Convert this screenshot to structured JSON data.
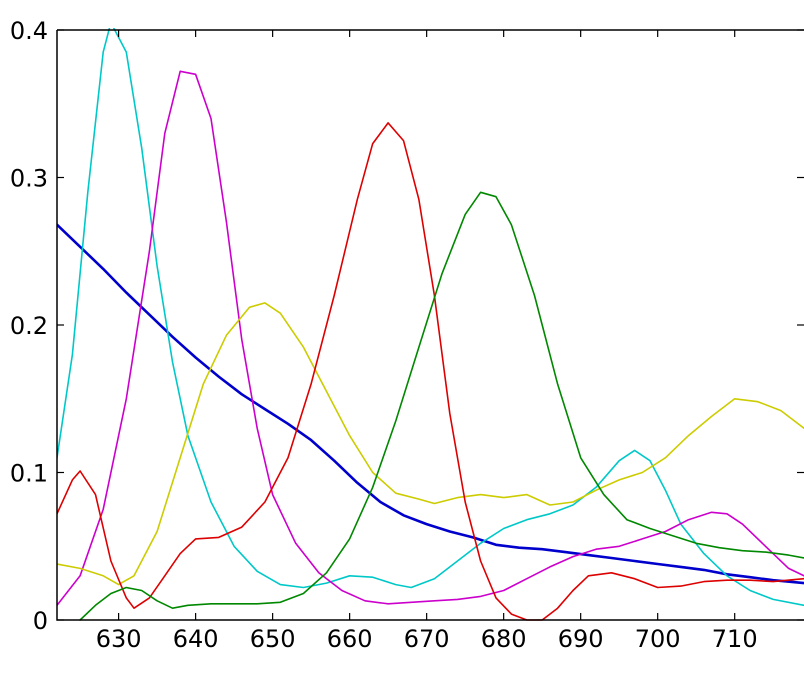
{
  "chart_data": {
    "type": "line",
    "title": "",
    "xlabel": "",
    "ylabel": "",
    "xlim": [
      622,
      719
    ],
    "ylim": [
      0,
      0.4
    ],
    "grid": false,
    "legend": "none",
    "xticks": [
      630,
      640,
      650,
      660,
      670,
      680,
      690,
      700,
      710
    ],
    "xtick_labels": [
      "630",
      "640",
      "650",
      "660",
      "670",
      "680",
      "690",
      "700",
      "710"
    ],
    "yticks": [
      0,
      0.1,
      0.2,
      0.3,
      0.4
    ],
    "ytick_labels": [
      "0",
      "0.1",
      "0.2",
      "0.3",
      "0.4"
    ],
    "series": [
      {
        "color": "#0000cc",
        "points": [
          [
            622,
            0.268
          ],
          [
            625,
            0.253
          ],
          [
            628,
            0.238
          ],
          [
            631,
            0.222
          ],
          [
            634,
            0.207
          ],
          [
            637,
            0.192
          ],
          [
            640,
            0.178
          ],
          [
            643,
            0.165
          ],
          [
            646,
            0.153
          ],
          [
            649,
            0.143
          ],
          [
            652,
            0.133
          ],
          [
            655,
            0.122
          ],
          [
            658,
            0.108
          ],
          [
            661,
            0.093
          ],
          [
            664,
            0.08
          ],
          [
            667,
            0.071
          ],
          [
            670,
            0.065
          ],
          [
            673,
            0.06
          ],
          [
            676,
            0.056
          ],
          [
            679,
            0.051
          ],
          [
            682,
            0.049
          ],
          [
            685,
            0.048
          ],
          [
            688,
            0.046
          ],
          [
            691,
            0.044
          ],
          [
            694,
            0.042
          ],
          [
            697,
            0.04
          ],
          [
            700,
            0.038
          ],
          [
            703,
            0.036
          ],
          [
            706,
            0.034
          ],
          [
            709,
            0.031
          ],
          [
            712,
            0.029
          ],
          [
            715,
            0.027
          ],
          [
            719,
            0.025
          ]
        ]
      },
      {
        "color": "#00c8c8",
        "points": [
          [
            622,
            0.11
          ],
          [
            624,
            0.18
          ],
          [
            626,
            0.29
          ],
          [
            628,
            0.385
          ],
          [
            629,
            0.405
          ],
          [
            631,
            0.385
          ],
          [
            633,
            0.32
          ],
          [
            635,
            0.24
          ],
          [
            637,
            0.175
          ],
          [
            639,
            0.125
          ],
          [
            642,
            0.08
          ],
          [
            645,
            0.05
          ],
          [
            648,
            0.033
          ],
          [
            651,
            0.024
          ],
          [
            654,
            0.022
          ],
          [
            657,
            0.025
          ],
          [
            660,
            0.03
          ],
          [
            663,
            0.029
          ],
          [
            666,
            0.024
          ],
          [
            668,
            0.022
          ],
          [
            671,
            0.028
          ],
          [
            674,
            0.04
          ],
          [
            677,
            0.052
          ],
          [
            680,
            0.062
          ],
          [
            683,
            0.068
          ],
          [
            686,
            0.072
          ],
          [
            689,
            0.078
          ],
          [
            692,
            0.09
          ],
          [
            695,
            0.108
          ],
          [
            697,
            0.115
          ],
          [
            699,
            0.108
          ],
          [
            701,
            0.088
          ],
          [
            703,
            0.065
          ],
          [
            706,
            0.045
          ],
          [
            709,
            0.03
          ],
          [
            712,
            0.02
          ],
          [
            715,
            0.014
          ],
          [
            719,
            0.01
          ]
        ]
      },
      {
        "color": "#cc00cc",
        "points": [
          [
            622,
            0.01
          ],
          [
            625,
            0.03
          ],
          [
            628,
            0.075
          ],
          [
            631,
            0.15
          ],
          [
            634,
            0.25
          ],
          [
            636,
            0.33
          ],
          [
            638,
            0.372
          ],
          [
            640,
            0.37
          ],
          [
            642,
            0.34
          ],
          [
            644,
            0.27
          ],
          [
            646,
            0.19
          ],
          [
            648,
            0.13
          ],
          [
            650,
            0.085
          ],
          [
            653,
            0.052
          ],
          [
            656,
            0.032
          ],
          [
            659,
            0.02
          ],
          [
            662,
            0.013
          ],
          [
            665,
            0.011
          ],
          [
            668,
            0.012
          ],
          [
            671,
            0.013
          ],
          [
            674,
            0.014
          ],
          [
            677,
            0.016
          ],
          [
            680,
            0.02
          ],
          [
            683,
            0.028
          ],
          [
            686,
            0.036
          ],
          [
            689,
            0.043
          ],
          [
            692,
            0.048
          ],
          [
            695,
            0.05
          ],
          [
            698,
            0.055
          ],
          [
            701,
            0.06
          ],
          [
            704,
            0.068
          ],
          [
            707,
            0.073
          ],
          [
            709,
            0.072
          ],
          [
            711,
            0.065
          ],
          [
            714,
            0.05
          ],
          [
            717,
            0.035
          ],
          [
            719,
            0.03
          ]
        ]
      },
      {
        "color": "#cccc00",
        "points": [
          [
            622,
            0.038
          ],
          [
            625,
            0.035
          ],
          [
            628,
            0.03
          ],
          [
            630,
            0.024
          ],
          [
            632,
            0.03
          ],
          [
            635,
            0.06
          ],
          [
            638,
            0.11
          ],
          [
            641,
            0.16
          ],
          [
            644,
            0.193
          ],
          [
            647,
            0.212
          ],
          [
            649,
            0.215
          ],
          [
            651,
            0.208
          ],
          [
            654,
            0.185
          ],
          [
            657,
            0.155
          ],
          [
            660,
            0.125
          ],
          [
            663,
            0.1
          ],
          [
            666,
            0.086
          ],
          [
            669,
            0.082
          ],
          [
            671,
            0.079
          ],
          [
            674,
            0.083
          ],
          [
            677,
            0.085
          ],
          [
            680,
            0.083
          ],
          [
            683,
            0.085
          ],
          [
            686,
            0.078
          ],
          [
            689,
            0.08
          ],
          [
            692,
            0.088
          ],
          [
            695,
            0.095
          ],
          [
            698,
            0.1
          ],
          [
            701,
            0.11
          ],
          [
            704,
            0.125
          ],
          [
            707,
            0.138
          ],
          [
            710,
            0.15
          ],
          [
            713,
            0.148
          ],
          [
            716,
            0.142
          ],
          [
            719,
            0.13
          ]
        ]
      },
      {
        "color": "#dd0000",
        "points": [
          [
            622,
            0.072
          ],
          [
            624,
            0.095
          ],
          [
            625,
            0.101
          ],
          [
            627,
            0.085
          ],
          [
            629,
            0.04
          ],
          [
            631,
            0.015
          ],
          [
            632,
            0.008
          ],
          [
            634,
            0.015
          ],
          [
            636,
            0.03
          ],
          [
            638,
            0.045
          ],
          [
            640,
            0.055
          ],
          [
            643,
            0.056
          ],
          [
            646,
            0.063
          ],
          [
            649,
            0.08
          ],
          [
            652,
            0.11
          ],
          [
            655,
            0.16
          ],
          [
            658,
            0.22
          ],
          [
            661,
            0.285
          ],
          [
            663,
            0.323
          ],
          [
            665,
            0.337
          ],
          [
            667,
            0.325
          ],
          [
            669,
            0.285
          ],
          [
            671,
            0.22
          ],
          [
            673,
            0.14
          ],
          [
            675,
            0.08
          ],
          [
            677,
            0.04
          ],
          [
            679,
            0.015
          ],
          [
            681,
            0.004
          ],
          [
            683,
            0.0
          ],
          [
            685,
            0.0
          ],
          [
            687,
            0.008
          ],
          [
            689,
            0.02
          ],
          [
            691,
            0.03
          ],
          [
            694,
            0.032
          ],
          [
            697,
            0.028
          ],
          [
            700,
            0.022
          ],
          [
            703,
            0.023
          ],
          [
            706,
            0.026
          ],
          [
            709,
            0.027
          ],
          [
            712,
            0.027
          ],
          [
            715,
            0.026
          ],
          [
            719,
            0.028
          ]
        ]
      },
      {
        "color": "#008800",
        "points": [
          [
            625,
            0.0
          ],
          [
            627,
            0.01
          ],
          [
            629,
            0.018
          ],
          [
            631,
            0.022
          ],
          [
            633,
            0.02
          ],
          [
            635,
            0.013
          ],
          [
            637,
            0.008
          ],
          [
            639,
            0.01
          ],
          [
            642,
            0.011
          ],
          [
            645,
            0.011
          ],
          [
            648,
            0.011
          ],
          [
            651,
            0.012
          ],
          [
            654,
            0.018
          ],
          [
            657,
            0.032
          ],
          [
            660,
            0.055
          ],
          [
            663,
            0.09
          ],
          [
            666,
            0.135
          ],
          [
            669,
            0.185
          ],
          [
            672,
            0.235
          ],
          [
            675,
            0.275
          ],
          [
            677,
            0.29
          ],
          [
            679,
            0.287
          ],
          [
            681,
            0.268
          ],
          [
            684,
            0.22
          ],
          [
            687,
            0.16
          ],
          [
            690,
            0.11
          ],
          [
            693,
            0.085
          ],
          [
            696,
            0.068
          ],
          [
            699,
            0.062
          ],
          [
            702,
            0.057
          ],
          [
            705,
            0.052
          ],
          [
            708,
            0.049
          ],
          [
            711,
            0.047
          ],
          [
            714,
            0.046
          ],
          [
            717,
            0.044
          ],
          [
            719,
            0.042
          ]
        ]
      }
    ]
  }
}
